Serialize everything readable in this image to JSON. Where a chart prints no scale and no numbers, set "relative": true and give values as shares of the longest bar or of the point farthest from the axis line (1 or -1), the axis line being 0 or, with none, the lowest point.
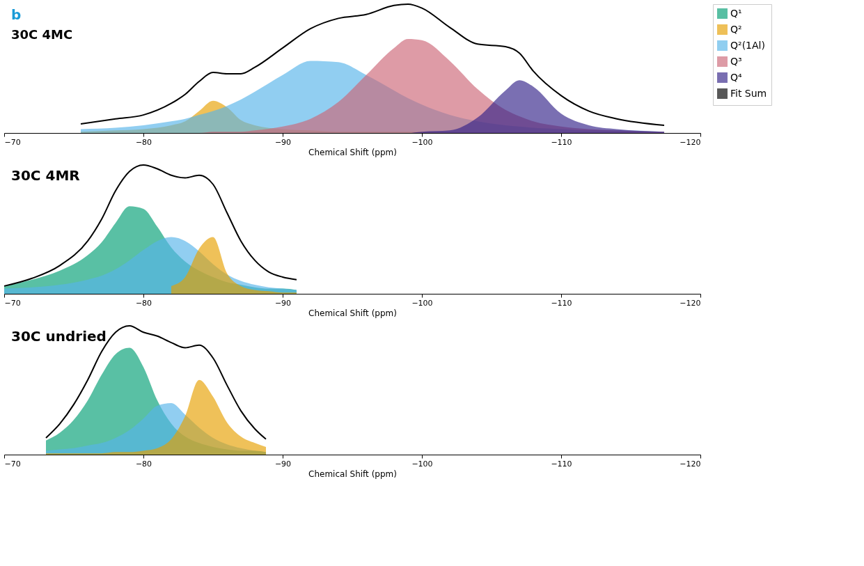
{
  "chart_data": [
    {
      "type": "area",
      "relative": true,
      "xlabel": "Chemical Shift (ppm)",
      "xlim": [
        -70,
        -120
      ],
      "xticks": [
        -70,
        -80,
        -90,
        -100,
        -110,
        -120
      ],
      "legend": "top right",
      "annotations": [
        "b",
        "30C 4MC"
      ],
      "x": [
        -75.5,
        -78,
        -80,
        -82,
        -83,
        -84,
        -85,
        -86,
        -87,
        -88,
        -90,
        -92,
        -94,
        -96,
        -98,
        -99,
        -100,
        -102,
        -104,
        -106,
        -107,
        -108,
        -110,
        -112,
        -114,
        -117.4
      ],
      "series": [
        {
          "name": "Q¹",
          "color": "#009e73",
          "values": [
            null,
            null,
            null,
            null,
            null,
            null,
            null,
            null,
            null,
            null,
            null,
            null,
            null,
            null,
            null,
            null,
            null,
            null,
            null,
            null,
            null,
            null,
            null,
            null,
            null,
            null
          ]
        },
        {
          "name": "Q²",
          "color": "#e69f00",
          "values": [
            0.01,
            0.02,
            0.03,
            0.06,
            0.09,
            0.17,
            0.25,
            0.2,
            0.1,
            0.06,
            0.03,
            0.02,
            0.01,
            0.01,
            0.01,
            0.01,
            0.01,
            0.0,
            0.0,
            0.0,
            0.0,
            0.0,
            0.0,
            0.0,
            0.0,
            0.0
          ]
        },
        {
          "name": "Q²(1Al)",
          "color": "#56b4e9",
          "values": [
            0.03,
            0.04,
            0.06,
            0.09,
            0.11,
            0.14,
            0.17,
            0.21,
            0.26,
            0.32,
            0.45,
            0.56,
            0.55,
            0.45,
            0.33,
            0.27,
            0.22,
            0.14,
            0.09,
            0.06,
            0.05,
            0.04,
            0.03,
            0.02,
            0.02,
            0.01
          ]
        },
        {
          "name": "Q³",
          "color": "#cc6677",
          "values": [
            0.0,
            0.0,
            0.0,
            0.0,
            0.0,
            0.0,
            0.01,
            0.01,
            0.01,
            0.02,
            0.05,
            0.11,
            0.24,
            0.45,
            0.66,
            0.73,
            0.72,
            0.56,
            0.34,
            0.18,
            0.13,
            0.09,
            0.05,
            0.03,
            0.02,
            0.01
          ]
        },
        {
          "name": "Q⁴",
          "color": "#332288",
          "values": [
            0.0,
            0.0,
            0.0,
            0.0,
            0.0,
            0.0,
            0.0,
            0.0,
            0.0,
            0.0,
            0.0,
            0.0,
            0.0,
            0.0,
            0.0,
            0.0,
            0.01,
            0.02,
            0.12,
            0.33,
            0.41,
            0.36,
            0.15,
            0.06,
            0.03,
            0.01
          ]
        },
        {
          "name": "Fit Sum",
          "type": "line",
          "color": "#000000",
          "values": [
            0.07,
            0.11,
            0.14,
            0.23,
            0.3,
            0.4,
            0.47,
            0.46,
            0.46,
            0.51,
            0.66,
            0.81,
            0.89,
            0.92,
            0.99,
            1.0,
            0.97,
            0.82,
            0.69,
            0.67,
            0.62,
            0.48,
            0.29,
            0.17,
            0.11,
            0.06
          ]
        }
      ]
    },
    {
      "type": "area",
      "relative": true,
      "xlabel": "Chemical Shift (ppm)",
      "xlim": [
        -70,
        -120
      ],
      "xticks": [
        -70,
        -80,
        -90,
        -100,
        -110,
        -120
      ],
      "annotations": [
        "30C 4MR"
      ],
      "x": [
        -70,
        -72,
        -74,
        -76,
        -77,
        -78,
        -79,
        -80,
        -81,
        -82,
        -83,
        -84,
        -85,
        -86,
        -87,
        -88,
        -89,
        -90,
        -91
      ],
      "series": [
        {
          "color": "#009e73",
          "values": [
            0.06,
            0.11,
            0.18,
            0.3,
            0.4,
            0.55,
            0.68,
            0.66,
            0.52,
            0.36,
            0.25,
            0.18,
            0.13,
            0.09,
            0.07,
            0.05,
            0.04,
            0.04,
            0.03
          ]
        },
        {
          "color": "#56b4e9",
          "values": [
            0.04,
            0.05,
            0.07,
            0.11,
            0.14,
            0.19,
            0.26,
            0.34,
            0.41,
            0.44,
            0.41,
            0.33,
            0.23,
            0.15,
            0.1,
            0.07,
            0.05,
            0.04,
            0.03
          ]
        },
        {
          "color": "#e69f00",
          "values": [
            null,
            null,
            null,
            null,
            null,
            null,
            null,
            null,
            null,
            0.06,
            0.13,
            0.35,
            0.44,
            0.16,
            0.06,
            0.03,
            0.02,
            0.01,
            0.01
          ]
        },
        {
          "type": "line",
          "color": "#000000",
          "values": [
            0.06,
            0.12,
            0.22,
            0.41,
            0.58,
            0.8,
            0.95,
            1.0,
            0.97,
            0.92,
            0.9,
            0.92,
            0.85,
            0.63,
            0.41,
            0.26,
            0.17,
            0.13,
            0.11
          ]
        }
      ]
    },
    {
      "type": "area",
      "relative": true,
      "xlabel": "Chemical Shift (ppm)",
      "xlim": [
        -70,
        -120
      ],
      "xticks": [
        -70,
        -80,
        -90,
        -100,
        -110,
        -120
      ],
      "annotations": [
        "30C undried"
      ],
      "x": [
        -73,
        -74,
        -75,
        -76,
        -77,
        -78,
        -79,
        -80,
        -81,
        -82,
        -83,
        -84,
        -85,
        -86,
        -87,
        -88,
        -88.8
      ],
      "series": [
        {
          "color": "#009e73",
          "values": [
            0.11,
            0.17,
            0.27,
            0.42,
            0.62,
            0.78,
            0.83,
            0.68,
            0.42,
            0.24,
            0.14,
            0.09,
            0.06,
            0.04,
            0.03,
            0.03,
            0.02
          ]
        },
        {
          "color": "#56b4e9",
          "values": [
            0.03,
            0.04,
            0.05,
            0.07,
            0.09,
            0.13,
            0.19,
            0.28,
            0.38,
            0.4,
            0.31,
            0.21,
            0.13,
            0.08,
            0.05,
            0.03,
            0.02
          ]
        },
        {
          "color": "#e69f00",
          "values": [
            0.01,
            0.01,
            0.01,
            0.01,
            0.01,
            0.02,
            0.02,
            0.03,
            0.05,
            0.12,
            0.3,
            0.58,
            0.45,
            0.25,
            0.14,
            0.09,
            0.06
          ]
        },
        {
          "type": "line",
          "color": "#000000",
          "values": [
            0.13,
            0.24,
            0.39,
            0.58,
            0.8,
            0.95,
            1.0,
            0.95,
            0.92,
            0.87,
            0.83,
            0.85,
            0.75,
            0.54,
            0.34,
            0.2,
            0.12
          ]
        }
      ]
    }
  ]
}
